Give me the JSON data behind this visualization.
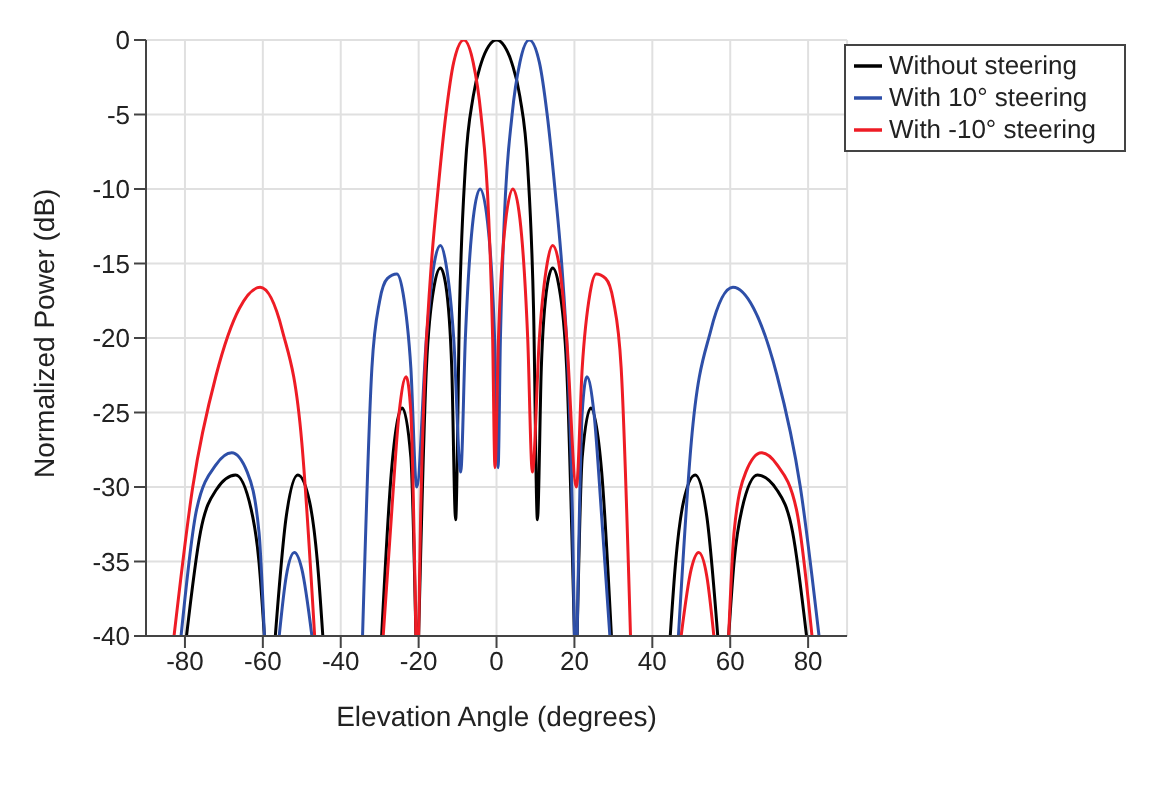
{
  "chart_data": {
    "type": "line",
    "xlabel": "Elevation Angle (degrees)",
    "ylabel": "Normalized Power (dB)",
    "xlim": [
      -90,
      90
    ],
    "xticks": [
      -80,
      -60,
      -40,
      -20,
      0,
      20,
      40,
      60,
      80
    ],
    "ylim": [
      -40,
      0
    ],
    "yticks": [
      -40,
      -35,
      -30,
      -25,
      -20,
      -15,
      -10,
      -5,
      0
    ],
    "grid": true,
    "legend": "top right",
    "line_style": "solid",
    "marker": "none",
    "series": [
      {
        "name": "Without steering",
        "color": "#000000",
        "x": [
          -79.6,
          -76,
          -72,
          -67,
          -63,
          -61,
          -59.6,
          -58,
          -56.8,
          -54,
          -51,
          -48,
          -46,
          -44.6,
          -37,
          -29.5,
          -27,
          -24.2,
          -22,
          -20.7,
          -20.3,
          -20,
          -18,
          -16,
          -14.4,
          -13,
          -11.5,
          -10.5,
          -9.5,
          -8,
          -6,
          -4,
          -2,
          0,
          2,
          4,
          6,
          8,
          9.5,
          10.5,
          11.5,
          13,
          14.4,
          16,
          18,
          20,
          20.3,
          20.7,
          22,
          24.2,
          27,
          29.5,
          37,
          44.6,
          46,
          48,
          51,
          54,
          56.8,
          58,
          59.6,
          61,
          63,
          67,
          72,
          76,
          79.6
        ],
        "values": [
          -40,
          -33,
          -30.2,
          -29.2,
          -31.5,
          -35,
          -40,
          null,
          -40,
          -32,
          -29.2,
          -31,
          -35,
          -40,
          null,
          -40,
          -29,
          -24.7,
          -28,
          -40,
          null,
          -40,
          -22,
          -16.5,
          -15.3,
          -16.5,
          -22,
          -32.2,
          -18,
          -8.5,
          -3.8,
          -1.6,
          -0.4,
          0,
          -0.4,
          -1.6,
          -3.8,
          -8.5,
          -18,
          -32.2,
          -22,
          -16.5,
          -15.3,
          -16.5,
          -22,
          -40,
          null,
          -40,
          -28,
          -24.7,
          -29,
          -40,
          null,
          -40,
          -35,
          -31,
          -29.2,
          -32,
          -40,
          null,
          -40,
          -35,
          -31.5,
          -29.2,
          -30.2,
          -33,
          -40
        ]
      },
      {
        "name": "With 10° steering",
        "color": "#2e4fa8",
        "x": [
          -81,
          -77,
          -72,
          -68,
          -64,
          -61,
          -59.6,
          -58,
          -55.8,
          -54,
          -51.9,
          -50,
          -47.4,
          -40,
          -34.4,
          -32,
          -30,
          -28,
          -25.6,
          -24,
          -22,
          -20.5,
          -18,
          -16,
          -14.4,
          -13,
          -11,
          -9.2,
          -8,
          -6,
          -4.2,
          -2,
          -0.5,
          0.4,
          1,
          2,
          4,
          6,
          8.4,
          11,
          13,
          15,
          17,
          18.5,
          19.5,
          20,
          20.3,
          20.7,
          22,
          23.2,
          25,
          27,
          29.1,
          38,
          46.7,
          50,
          55,
          60.7,
          66,
          72,
          78,
          82.8
        ],
        "values": [
          -40,
          -31.5,
          -28.5,
          -27.7,
          -29,
          -33,
          -40,
          null,
          -40,
          -36,
          -34.4,
          -35.5,
          -40,
          null,
          -40,
          -22,
          -17.5,
          -16,
          -15.7,
          -17,
          -22,
          -30,
          -20,
          -15,
          -13.8,
          -15,
          -20,
          -29,
          -20,
          -12,
          -10,
          -13,
          -20,
          -28.7,
          -20,
          -12,
          -5,
          -1.5,
          0,
          -1.5,
          -5,
          -10,
          -16,
          -23,
          -32,
          -40,
          null,
          -40,
          -25,
          -22.6,
          -25,
          -32,
          -40,
          null,
          -40,
          -27,
          -19.5,
          -16.6,
          -18,
          -22.5,
          -30,
          -40
        ]
      },
      {
        "name": "With -10° steering",
        "color": "#ee1c25",
        "x": [
          -82.8,
          -78,
          -72,
          -66,
          -60.7,
          -55,
          -50,
          -46.7,
          -38,
          -29.1,
          -27,
          -25,
          -23.2,
          -22,
          -20.7,
          -20.3,
          -20,
          -19.5,
          -18.5,
          -17,
          -15,
          -13,
          -11,
          -8.4,
          -6,
          -4,
          -2,
          -1,
          -0.4,
          0.5,
          2,
          4.2,
          6,
          8,
          9.2,
          11,
          13,
          14.4,
          16,
          18,
          20.5,
          22,
          24,
          25.6,
          28,
          30,
          32,
          34.4,
          40,
          47.4,
          50,
          51.9,
          54,
          55.8,
          58,
          59.6,
          61,
          64,
          68,
          72,
          77,
          81
        ],
        "values": [
          -40,
          -30,
          -22.5,
          -18,
          -16.6,
          -19.5,
          -27,
          -40,
          null,
          -40,
          -32,
          -25,
          -22.6,
          -25,
          -40,
          null,
          -40,
          -32,
          -23,
          -16,
          -10,
          -5,
          -1.5,
          0,
          -1.5,
          -5,
          -12,
          -20,
          -28.7,
          -20,
          -13,
          -10,
          -12,
          -20,
          -29,
          -20,
          -15,
          -13.8,
          -15,
          -20,
          -30,
          -22,
          -17,
          -15.7,
          -16,
          -17.5,
          -22,
          -40,
          null,
          -40,
          -35.5,
          -34.4,
          -36,
          -40,
          null,
          -40,
          -33,
          -29,
          -27.7,
          -28.5,
          -31.5,
          -40
        ]
      }
    ]
  }
}
